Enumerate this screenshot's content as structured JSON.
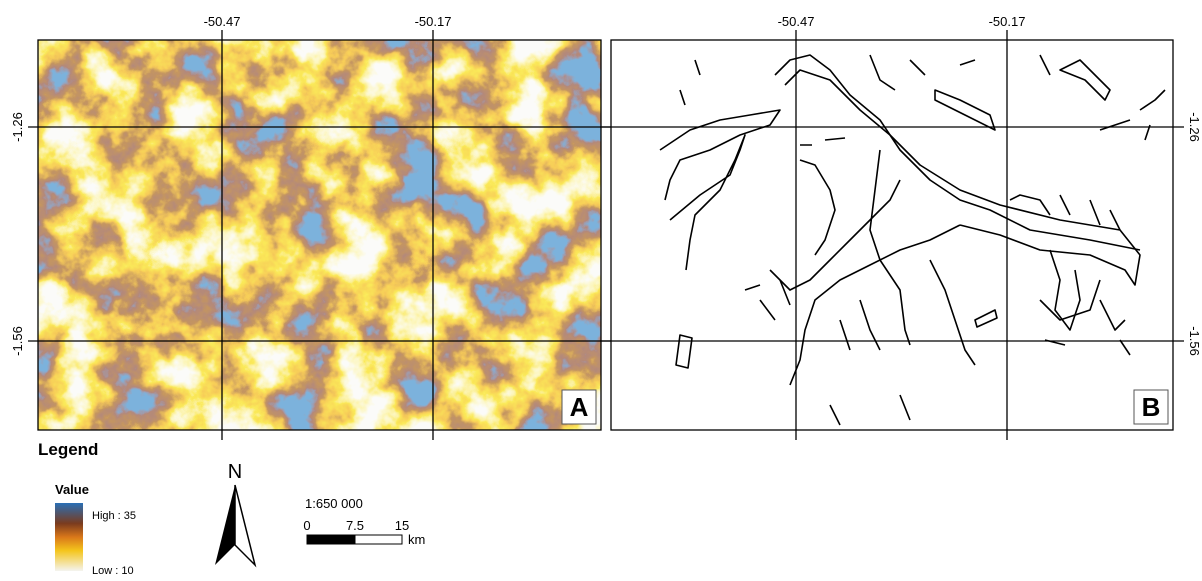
{
  "panels": [
    {
      "label": "A",
      "lon_labels": [
        "-50.47",
        "-50.17"
      ],
      "lat_labels": [
        "-1.26",
        "-1.56"
      ]
    },
    {
      "label": "B",
      "lon_labels": [
        "-50.47",
        "-50.17"
      ],
      "lat_labels": [
        "-1.26",
        "-1.56"
      ]
    }
  ],
  "legend": {
    "title": "Legend",
    "field": "Value",
    "high": "High : 35",
    "low": "Low : 10"
  },
  "north_arrow": "N",
  "scale_bar": {
    "ratio": "1:650 000",
    "ticks": [
      "0",
      "7.5",
      "15"
    ],
    "unit": "km"
  }
}
